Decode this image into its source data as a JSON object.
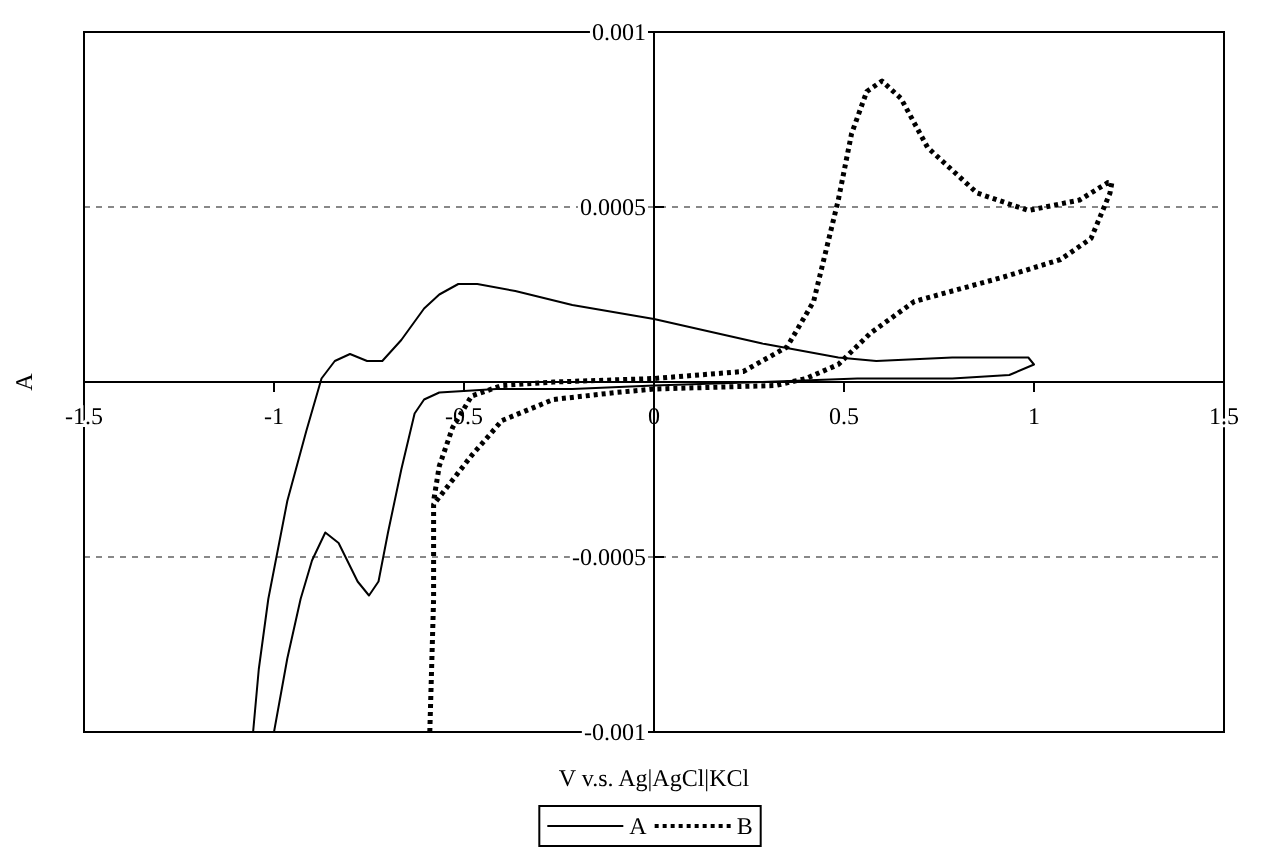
{
  "chart_data": {
    "type": "line",
    "xlabel": "V v.s. Ag|AgCl|KCl",
    "ylabel": "A",
    "xlim": [
      -1.5,
      1.5
    ],
    "ylim": [
      -0.001,
      0.001
    ],
    "xticks": [
      -1.5,
      -1,
      -0.5,
      0,
      0.5,
      1,
      1.5
    ],
    "yticks": [
      -0.001,
      -0.0005,
      0.0005,
      0.001
    ],
    "grid": "y",
    "legend": "bottom",
    "series": [
      {
        "name": "A",
        "color": "#000000",
        "line_style": "solid",
        "x": [
          -1.0,
          -0.965,
          -0.93,
          -0.9,
          -0.865,
          -0.83,
          -0.78,
          -0.75,
          -0.725,
          -0.7,
          -0.665,
          -0.63,
          -0.605,
          -0.565,
          -0.415,
          -0.215,
          0,
          0.285,
          0.535,
          0.785,
          0.935,
          1.0,
          0.985,
          0.785,
          0.585,
          0.485,
          0.285,
          0,
          -0.215,
          -0.365,
          -0.465,
          -0.515,
          -0.565,
          -0.605,
          -0.665,
          -0.715,
          -0.755,
          -0.8,
          -0.84,
          -0.875,
          -0.915,
          -0.965,
          -1.015,
          -1.04,
          -1.055
        ],
        "values": [
          -0.001,
          -0.00079,
          -0.00062,
          -0.00051,
          -0.00043,
          -0.00046,
          -0.00057,
          -0.00061,
          -0.00057,
          -0.00043,
          -0.00025,
          -9e-05,
          -5e-05,
          -3e-05,
          -2e-05,
          -2e-05,
          -1e-05,
          0,
          1e-05,
          1e-05,
          2e-05,
          5e-05,
          7e-05,
          7e-05,
          6e-05,
          7e-05,
          0.00011,
          0.00018,
          0.00022,
          0.00026,
          0.00028,
          0.00028,
          0.00025,
          0.00021,
          0.00012,
          6e-05,
          6e-05,
          8e-05,
          6e-05,
          1e-05,
          -0.00014,
          -0.00034,
          -0.00062,
          -0.00082,
          -0.001
        ]
      },
      {
        "name": "B",
        "color": "#000000",
        "line_style": "dotted",
        "x": [
          -0.59,
          -0.58,
          -0.58,
          -0.53,
          -0.48,
          -0.4,
          -0.265,
          -0.1,
          0,
          0.32,
          0.4,
          0.485,
          0.57,
          0.685,
          0.785,
          0.92,
          1.07,
          1.15,
          1.2,
          1.205,
          1.195,
          1.12,
          0.985,
          0.85,
          0.72,
          0.65,
          0.6,
          0.56,
          0.52,
          0.485,
          0.42,
          0.35,
          0.235,
          0,
          -0.265,
          -0.4,
          -0.48,
          -0.53,
          -0.565,
          -0.58
        ],
        "values": [
          -0.001,
          -0.00062,
          -0.00035,
          -0.00028,
          -0.00021,
          -0.00011,
          -5e-05,
          -3e-05,
          -2e-05,
          -1e-05,
          1e-05,
          5e-05,
          0.00014,
          0.00023,
          0.00026,
          0.0003,
          0.00035,
          0.00041,
          0.00054,
          0.00057,
          0.00057,
          0.00052,
          0.00049,
          0.00054,
          0.00067,
          0.00081,
          0.00086,
          0.00083,
          0.00071,
          0.00052,
          0.00023,
          0.0001,
          3e-05,
          1e-05,
          0,
          -1e-05,
          -4e-05,
          -0.00013,
          -0.00024,
          -0.00034
        ]
      }
    ]
  }
}
